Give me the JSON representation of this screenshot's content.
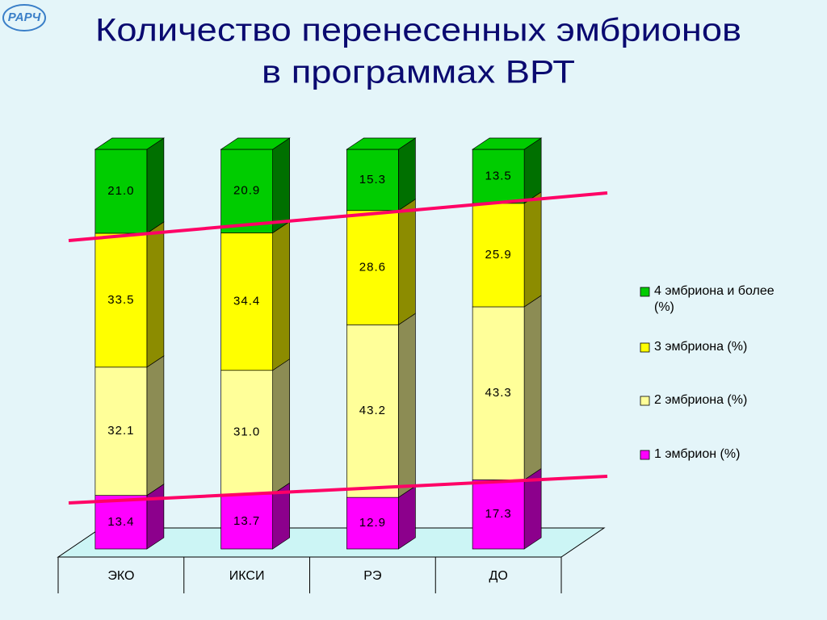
{
  "logo": "РАРЧ",
  "chart_data": {
    "type": "bar",
    "stacked": true,
    "title": [
      "Количество перенесенных эмбрионов",
      "в программах ВРТ"
    ],
    "categories": [
      "ЭКО",
      "ИКСИ",
      "РЭ",
      "ДО"
    ],
    "ylim": [
      0,
      100
    ],
    "series": [
      {
        "name": "1 эмбрион (%)",
        "color": "#ff00ff",
        "values": [
          13.4,
          13.7,
          12.9,
          17.3
        ],
        "value_labels": [
          "13.4",
          "13.7",
          "12.9",
          "17.3"
        ]
      },
      {
        "name": "2 эмбриона (%)",
        "color": "#ffff99",
        "values": [
          32.1,
          31.0,
          43.2,
          43.3
        ],
        "value_labels": [
          "32.1",
          "31.0",
          "43.2",
          "43.3"
        ]
      },
      {
        "name": "3 эмбриона (%)",
        "color": "#ffff00",
        "values": [
          33.5,
          34.4,
          28.6,
          25.9
        ],
        "value_labels": [
          "33.5",
          "34.4",
          "28.6",
          "25.9"
        ]
      },
      {
        "name": "4 эмбриона и более (%)",
        "color": "#00cc00",
        "values": [
          21.0,
          20.9,
          15.3,
          13.5
        ],
        "value_labels": [
          "21.0",
          "20.9",
          "15.3",
          "13.5"
        ]
      }
    ],
    "legend": "right"
  }
}
